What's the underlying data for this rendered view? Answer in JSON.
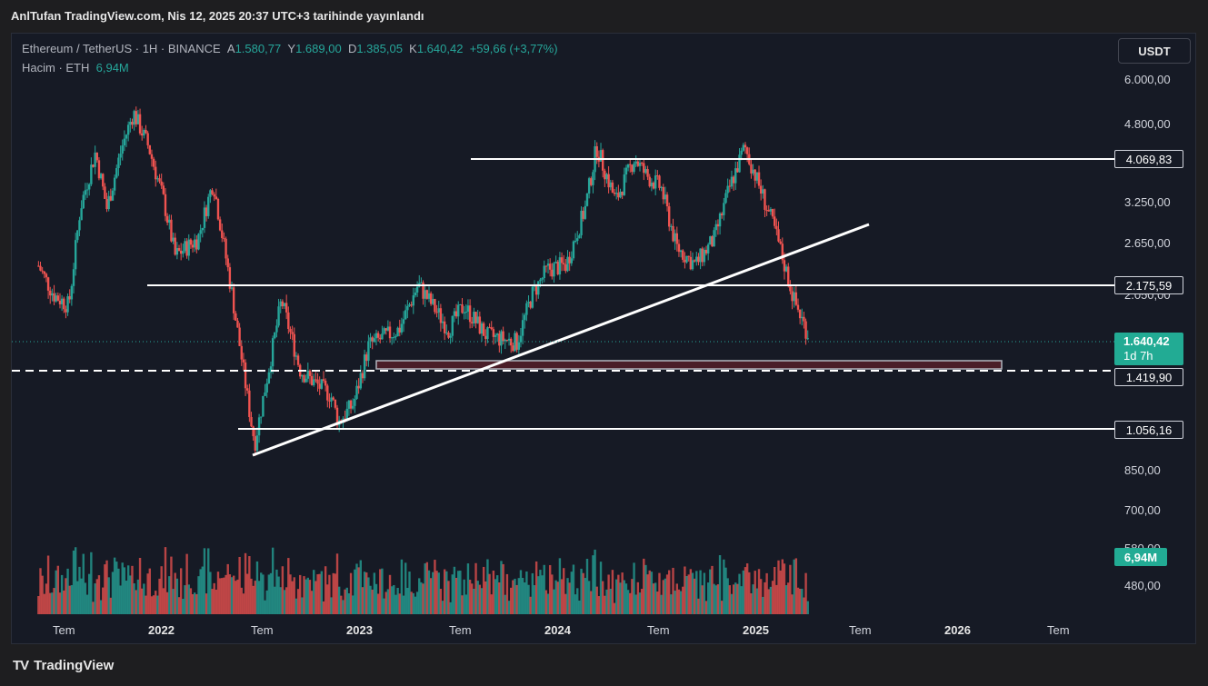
{
  "header": {
    "publish_text": "AnlTufan TradingView.com, Nis 12, 2025 20:37 UTC+3 tarihinde yayınlandı"
  },
  "legend": {
    "symbol": "Ethereum / TetherUS · 1H · BINANCE",
    "open_label": "A",
    "open": "1.580,77",
    "high_label": "Y",
    "high": "1.689,00",
    "low_label": "D",
    "low": "1.385,05",
    "close_label": "K",
    "close": "1.640,42",
    "change": "+59,66 (+3,77%)",
    "volume_label": "Hacim · ETH",
    "volume": "6,94M"
  },
  "currency_button": "USDT",
  "y_ticks": [
    "6.000,00",
    "4.800,00",
    "3.250,00",
    "2.650,00",
    "2.050,00",
    "850,00",
    "700,00",
    "580,00",
    "480,00"
  ],
  "x_ticks": [
    {
      "label": "Tem",
      "bold": false
    },
    {
      "label": "2022",
      "bold": true
    },
    {
      "label": "Tem",
      "bold": false
    },
    {
      "label": "2023",
      "bold": true
    },
    {
      "label": "Tem",
      "bold": false
    },
    {
      "label": "2024",
      "bold": true
    },
    {
      "label": "Tem",
      "bold": false
    },
    {
      "label": "2025",
      "bold": true
    },
    {
      "label": "Tem",
      "bold": false
    },
    {
      "label": "2026",
      "bold": true
    },
    {
      "label": "Tem",
      "bold": false
    }
  ],
  "levels": {
    "resistance_top": "4.069,83",
    "resistance_mid": "2.175,59",
    "dashed_support": "1.419,90",
    "bottom_support": "1.056,16"
  },
  "current_price": {
    "value": "1.640,42",
    "countdown": "1d 7h"
  },
  "volume_tag": "6,94M",
  "brand": {
    "logo": "TV",
    "name": "TradingView"
  },
  "colors": {
    "up": "#26a69a",
    "down": "#ef5350",
    "background": "#161a25",
    "line": "#ffffff",
    "zone_fill": "#4a1e28",
    "zone_border": "#b2b5be"
  },
  "chart_data": {
    "type": "candlestick",
    "symbol": "ETHUSDT",
    "exchange": "BINANCE",
    "y_scale": "log",
    "ylim": [
      440,
      7000
    ],
    "x_range": [
      "2021-05",
      "2026-09"
    ],
    "horizontal_levels": [
      4069.83,
      2175.59,
      1419.9,
      1056.16
    ],
    "trendline": {
      "from": [
        "2022-06-18",
        900
      ],
      "to": [
        "2025-06-01",
        2950
      ]
    },
    "support_zone": {
      "from": "2023-03",
      "to": "2026-01",
      "low": 1419.9,
      "high": 1540
    },
    "weekly_close": [
      [
        "2021-05-17",
        2290
      ],
      [
        "2021-06-14",
        2000
      ],
      [
        "2021-07-12",
        1900
      ],
      [
        "2021-08-02",
        3000
      ],
      [
        "2021-08-30",
        3900
      ],
      [
        "2021-09-20",
        3000
      ],
      [
        "2021-10-18",
        4000
      ],
      [
        "2021-11-08",
        4700
      ],
      [
        "2021-12-06",
        4000
      ],
      [
        "2022-01-03",
        3100
      ],
      [
        "2022-01-24",
        2400
      ],
      [
        "2022-03-07",
        2600
      ],
      [
        "2022-04-04",
        3400
      ],
      [
        "2022-05-09",
        2000
      ],
      [
        "2022-06-13",
        1100
      ],
      [
        "2022-06-20",
        1000
      ],
      [
        "2022-08-08",
        1950
      ],
      [
        "2022-09-12",
        1400
      ],
      [
        "2022-10-17",
        1300
      ],
      [
        "2022-11-07",
        1250
      ],
      [
        "2022-11-21",
        1100
      ],
      [
        "2022-12-19",
        1200
      ],
      [
        "2023-01-16",
        1580
      ],
      [
        "2023-03-13",
        1700
      ],
      [
        "2023-04-17",
        2100
      ],
      [
        "2023-06-12",
        1700
      ],
      [
        "2023-07-10",
        1900
      ],
      [
        "2023-08-21",
        1650
      ],
      [
        "2023-10-16",
        1600
      ],
      [
        "2023-11-13",
        2000
      ],
      [
        "2023-12-11",
        2250
      ],
      [
        "2024-01-15",
        2300
      ],
      [
        "2024-02-19",
        3000
      ],
      [
        "2024-03-11",
        4000
      ],
      [
        "2024-04-15",
        3100
      ],
      [
        "2024-05-20",
        3800
      ],
      [
        "2024-06-10",
        3500
      ],
      [
        "2024-07-08",
        3300
      ],
      [
        "2024-08-05",
        2500
      ],
      [
        "2024-09-09",
        2300
      ],
      [
        "2024-10-14",
        2600
      ],
      [
        "2024-11-11",
        3300
      ],
      [
        "2024-12-09",
        4000
      ],
      [
        "2025-01-06",
        3300
      ],
      [
        "2025-02-03",
        2700
      ],
      [
        "2025-03-10",
        1950
      ],
      [
        "2025-04-07",
        1640
      ]
    ],
    "volume_unit": "ETH",
    "last_volume": "6,94M"
  }
}
